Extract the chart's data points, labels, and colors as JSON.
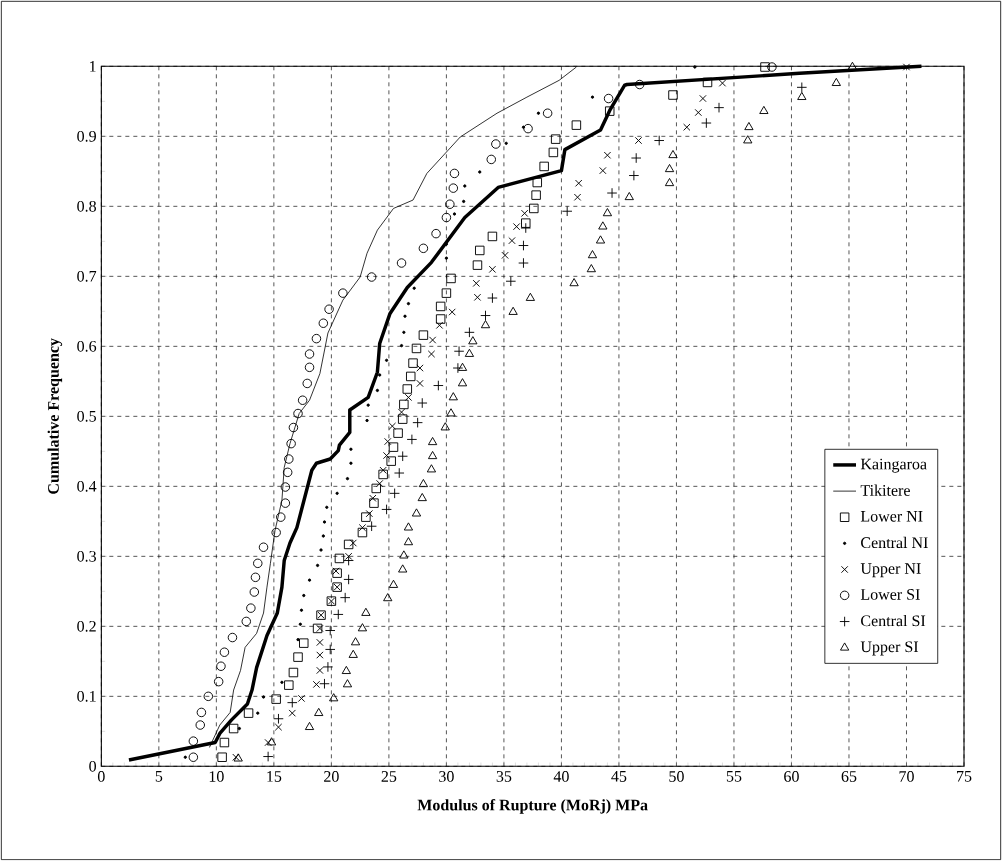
{
  "chart_data": {
    "type": "scatter",
    "xlabel": "Modulus of Rupture (MoRj) MPa",
    "ylabel": "Cumulative Frequency",
    "xlim": [
      0,
      75
    ],
    "ylim": [
      0,
      1
    ],
    "xticks": [
      0,
      5,
      10,
      15,
      20,
      25,
      30,
      35,
      40,
      45,
      50,
      55,
      60,
      65,
      70,
      75
    ],
    "yticks": [
      0,
      0.1,
      0.2,
      0.3,
      0.4,
      0.5,
      0.6,
      0.7,
      0.8,
      0.9,
      1
    ],
    "grid": true,
    "legend": "right",
    "series": [
      {
        "name": "Kaingaroa",
        "type": "line",
        "marker": "none",
        "line_style": "solid",
        "color": "#000000",
        "x": [
          2.4,
          9.9,
          10.3,
          11.3,
          12.7,
          13.1,
          13.5,
          14.4,
          15.3,
          15.7,
          15.9,
          16.4,
          17.0,
          18.3,
          18.7,
          19.9,
          20.6,
          20.7,
          21.6,
          21.6,
          23.2,
          24.0,
          24.2,
          25.1,
          26.6,
          28.7,
          31.6,
          34.5,
          40.0,
          40.3,
          43.4,
          44.2,
          45.5,
          45.7,
          60.7,
          71.3
        ],
        "values": [
          0.009,
          0.034,
          0.047,
          0.066,
          0.089,
          0.109,
          0.141,
          0.187,
          0.219,
          0.256,
          0.294,
          0.319,
          0.341,
          0.423,
          0.433,
          0.439,
          0.451,
          0.459,
          0.477,
          0.509,
          0.527,
          0.563,
          0.604,
          0.647,
          0.684,
          0.72,
          0.784,
          0.827,
          0.851,
          0.881,
          0.909,
          0.937,
          0.973,
          0.974,
          0.99,
          1.0
        ]
      },
      {
        "name": "Tikitere",
        "type": "line",
        "marker": "none",
        "line_style": "solid",
        "color": "#000000",
        "x": [
          9.4,
          10.3,
          11.2,
          11.5,
          12.1,
          12.5,
          13.5,
          14.1,
          14.4,
          14.7,
          15.1,
          15.7,
          15.9,
          16.4,
          17.2,
          18.1,
          19.0,
          19.7,
          21.0,
          22.5,
          23.1,
          24.0,
          25.4,
          27.1,
          28.3,
          31.2,
          34.4,
          37.0,
          39.8,
          41.3
        ],
        "values": [
          0.027,
          0.059,
          0.077,
          0.109,
          0.137,
          0.17,
          0.19,
          0.219,
          0.256,
          0.29,
          0.337,
          0.38,
          0.427,
          0.461,
          0.504,
          0.523,
          0.561,
          0.619,
          0.666,
          0.699,
          0.733,
          0.766,
          0.797,
          0.809,
          0.847,
          0.899,
          0.933,
          0.956,
          0.98,
          0.999
        ]
      },
      {
        "name": "Lower NI",
        "marker": "square",
        "color": "#000000",
        "x": [
          10.5,
          10.7,
          11.5,
          12.8,
          15.2,
          16.3,
          16.7,
          17.1,
          17.6,
          18.8,
          19.1,
          20.0,
          20.5,
          20.5,
          20.7,
          21.5,
          22.7,
          23.0,
          23.7,
          23.9,
          24.5,
          25.2,
          25.4,
          25.8,
          26.2,
          26.3,
          26.6,
          26.9,
          27.1,
          27.4,
          28.0,
          29.5,
          29.5,
          30.0,
          30.4,
          32.7,
          32.9,
          34.0,
          36.9,
          37.6,
          37.8,
          37.9,
          38.5,
          39.3,
          39.5,
          41.3,
          44.2,
          49.7,
          52.7,
          57.7
        ],
        "values": [
          0.013,
          0.034,
          0.054,
          0.076,
          0.096,
          0.116,
          0.134,
          0.156,
          0.176,
          0.197,
          0.216,
          0.236,
          0.256,
          0.276,
          0.297,
          0.317,
          0.334,
          0.356,
          0.376,
          0.397,
          0.417,
          0.436,
          0.456,
          0.476,
          0.496,
          0.517,
          0.539,
          0.557,
          0.576,
          0.597,
          0.616,
          0.639,
          0.657,
          0.676,
          0.697,
          0.716,
          0.737,
          0.757,
          0.776,
          0.797,
          0.816,
          0.834,
          0.857,
          0.877,
          0.896,
          0.916,
          0.936,
          0.959,
          0.977,
          0.999
        ]
      },
      {
        "name": "Central NI",
        "marker": "dot",
        "color": "#000000",
        "x": [
          7.3,
          12.0,
          13.6,
          14.1,
          15.7,
          17.1,
          17.3,
          17.4,
          17.6,
          18.1,
          18.8,
          19.1,
          19.3,
          19.4,
          19.6,
          20.5,
          21.4,
          21.7,
          21.7,
          23.1,
          23.2,
          24.0,
          24.2,
          24.8,
          26.1,
          26.3,
          26.4,
          26.7,
          27.2,
          30.0,
          30.0,
          30.7,
          31.5,
          31.6,
          32.9,
          35.2,
          36.7,
          38.0,
          42.7,
          51.6
        ],
        "values": [
          0.013,
          0.054,
          0.076,
          0.099,
          0.12,
          0.181,
          0.203,
          0.223,
          0.244,
          0.266,
          0.287,
          0.309,
          0.329,
          0.349,
          0.37,
          0.39,
          0.411,
          0.433,
          0.453,
          0.494,
          0.516,
          0.537,
          0.559,
          0.58,
          0.601,
          0.62,
          0.643,
          0.661,
          0.683,
          0.726,
          0.746,
          0.789,
          0.807,
          0.829,
          0.849,
          0.89,
          0.913,
          0.933,
          0.956,
          0.999
        ]
      },
      {
        "name": "Upper NI",
        "marker": "cross",
        "color": "#000000",
        "x": [
          11.7,
          14.5,
          15.4,
          16.6,
          17.4,
          18.7,
          19.0,
          19.0,
          19.0,
          19.0,
          19.1,
          20.0,
          20.5,
          20.4,
          21.5,
          21.9,
          22.7,
          23.3,
          23.6,
          24.2,
          24.5,
          24.8,
          24.9,
          25.3,
          26.1,
          26.7,
          27.7,
          27.7,
          28.7,
          28.8,
          29.4,
          30.5,
          32.7,
          32.6,
          34.0,
          35.1,
          35.7,
          36.1,
          36.8,
          41.4,
          41.5,
          43.6,
          44.0,
          46.7,
          50.9,
          51.9,
          52.3,
          54.0,
          70.0
        ],
        "values": [
          0.013,
          0.034,
          0.056,
          0.076,
          0.097,
          0.117,
          0.137,
          0.159,
          0.177,
          0.197,
          0.216,
          0.236,
          0.256,
          0.279,
          0.3,
          0.319,
          0.341,
          0.361,
          0.383,
          0.404,
          0.423,
          0.444,
          0.464,
          0.486,
          0.506,
          0.527,
          0.547,
          0.569,
          0.589,
          0.609,
          0.63,
          0.649,
          0.67,
          0.69,
          0.71,
          0.73,
          0.751,
          0.771,
          0.79,
          0.813,
          0.833,
          0.851,
          0.873,
          0.894,
          0.913,
          0.934,
          0.954,
          0.976,
          0.999
        ]
      },
      {
        "name": "Lower SI",
        "marker": "circle",
        "color": "#000000",
        "x": [
          8.0,
          8.0,
          8.6,
          8.7,
          9.3,
          10.2,
          10.4,
          10.7,
          11.4,
          12.6,
          13.0,
          13.3,
          13.4,
          13.6,
          14.1,
          15.2,
          15.6,
          16.0,
          16.0,
          16.2,
          16.3,
          16.5,
          16.7,
          17.1,
          17.5,
          17.9,
          18.1,
          18.1,
          18.7,
          19.3,
          19.8,
          21.0,
          23.5,
          26.1,
          28.0,
          29.1,
          30.0,
          30.3,
          30.6,
          30.7,
          33.9,
          34.3,
          37.1,
          38.8,
          44.1,
          46.8,
          58.3
        ],
        "values": [
          0.013,
          0.036,
          0.059,
          0.077,
          0.1,
          0.121,
          0.143,
          0.163,
          0.184,
          0.207,
          0.226,
          0.249,
          0.27,
          0.29,
          0.313,
          0.334,
          0.356,
          0.376,
          0.399,
          0.42,
          0.439,
          0.461,
          0.484,
          0.504,
          0.523,
          0.547,
          0.57,
          0.589,
          0.611,
          0.633,
          0.653,
          0.676,
          0.699,
          0.719,
          0.74,
          0.761,
          0.784,
          0.803,
          0.826,
          0.847,
          0.867,
          0.889,
          0.911,
          0.933,
          0.954,
          0.974,
          0.999
        ]
      },
      {
        "name": "Central SI",
        "marker": "plus",
        "color": "#000000",
        "x": [
          14.5,
          15.4,
          16.6,
          19.4,
          19.7,
          19.9,
          19.9,
          20.6,
          21.2,
          21.5,
          21.5,
          23.5,
          24.8,
          25.5,
          25.9,
          26.2,
          27.0,
          27.5,
          27.9,
          29.3,
          31.0,
          31.1,
          32.0,
          33.4,
          34.0,
          35.6,
          36.7,
          36.7,
          36.9,
          40.5,
          44.4,
          46.3,
          46.5,
          48.5,
          52.6,
          53.7,
          60.9
        ],
        "values": [
          0.014,
          0.068,
          0.091,
          0.118,
          0.142,
          0.167,
          0.194,
          0.217,
          0.241,
          0.267,
          0.294,
          0.343,
          0.367,
          0.39,
          0.419,
          0.443,
          0.467,
          0.491,
          0.519,
          0.544,
          0.569,
          0.593,
          0.62,
          0.644,
          0.669,
          0.693,
          0.719,
          0.744,
          0.769,
          0.793,
          0.819,
          0.844,
          0.869,
          0.894,
          0.919,
          0.941,
          0.97
        ]
      },
      {
        "name": "Upper SI",
        "marker": "triangle",
        "color": "#000000",
        "x": [
          11.9,
          14.8,
          18.1,
          18.9,
          20.2,
          21.4,
          21.3,
          21.9,
          22.1,
          22.7,
          23.0,
          24.9,
          25.4,
          26.2,
          26.3,
          26.7,
          26.7,
          27.4,
          27.9,
          28.0,
          28.7,
          28.8,
          28.8,
          29.9,
          30.4,
          30.6,
          31.4,
          31.4,
          32.0,
          32.3,
          33.4,
          35.8,
          37.3,
          41.1,
          42.6,
          42.7,
          43.4,
          43.6,
          44.0,
          45.9,
          49.4,
          49.4,
          49.7,
          56.2,
          56.3,
          57.6,
          60.9,
          63.9,
          65.3
        ],
        "values": [
          0.011,
          0.034,
          0.056,
          0.076,
          0.097,
          0.117,
          0.136,
          0.159,
          0.177,
          0.197,
          0.219,
          0.24,
          0.259,
          0.281,
          0.301,
          0.32,
          0.341,
          0.361,
          0.383,
          0.403,
          0.424,
          0.443,
          0.463,
          0.484,
          0.504,
          0.527,
          0.547,
          0.569,
          0.589,
          0.607,
          0.63,
          0.649,
          0.669,
          0.69,
          0.71,
          0.73,
          0.751,
          0.771,
          0.79,
          0.813,
          0.833,
          0.853,
          0.873,
          0.894,
          0.913,
          0.936,
          0.956,
          0.976,
          0.999
        ]
      }
    ]
  }
}
